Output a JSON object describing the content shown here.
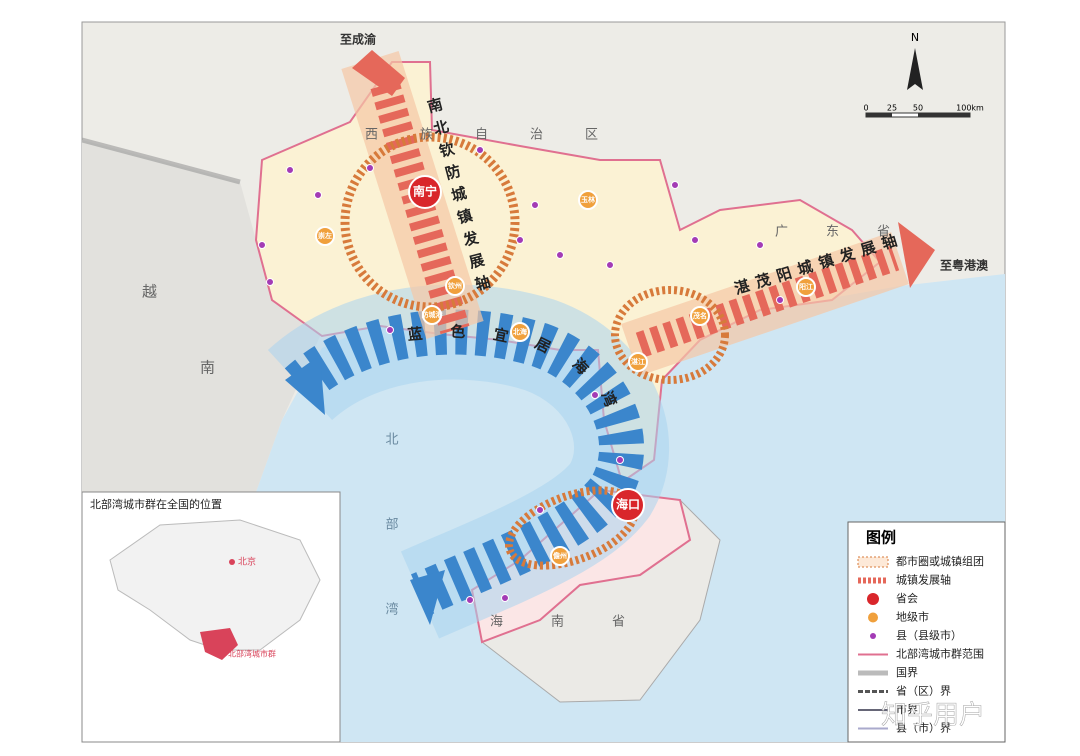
{
  "map": {
    "to_chengyu": "至成渝",
    "to_gba": "至粤港澳",
    "axis_nbqf": "南北钦防城镇发展轴",
    "axis_zmy": "湛茂阳城镇发展轴",
    "bay": "蓝色宜居海湾",
    "guangxi": "西族自治区",
    "guangdong": "广东省",
    "hainan": "海南省",
    "vietnam_1": "越",
    "vietnam_2": "南",
    "gulf": "北部湾",
    "north": "N",
    "scale": [
      "0",
      "25",
      "50",
      "100km"
    ],
    "cities": [
      {
        "name": "南宁",
        "kind": "capital"
      },
      {
        "name": "海口",
        "kind": "capital"
      },
      {
        "name": "玉林",
        "kind": "city"
      },
      {
        "name": "崇左",
        "kind": "city"
      },
      {
        "name": "钦州",
        "kind": "city"
      },
      {
        "name": "防城港",
        "kind": "city"
      },
      {
        "name": "北海",
        "kind": "city"
      },
      {
        "name": "湛江",
        "kind": "city"
      },
      {
        "name": "茂名",
        "kind": "city"
      },
      {
        "name": "阳江",
        "kind": "city"
      },
      {
        "name": "儋州",
        "kind": "city"
      }
    ]
  },
  "inset": {
    "title": "北部湾城市群在全国的位置",
    "beijing": "北京",
    "region": "北部湾城市群"
  },
  "legend": {
    "title": "图例",
    "items": [
      "都市圈或城镇组团",
      "城镇发展轴",
      "省会",
      "地级市",
      "县（县级市）",
      "北部湾城市群范围",
      "国界",
      "省（区）界",
      "市界",
      "县（市）界"
    ]
  },
  "watermark": "知乎用户"
}
